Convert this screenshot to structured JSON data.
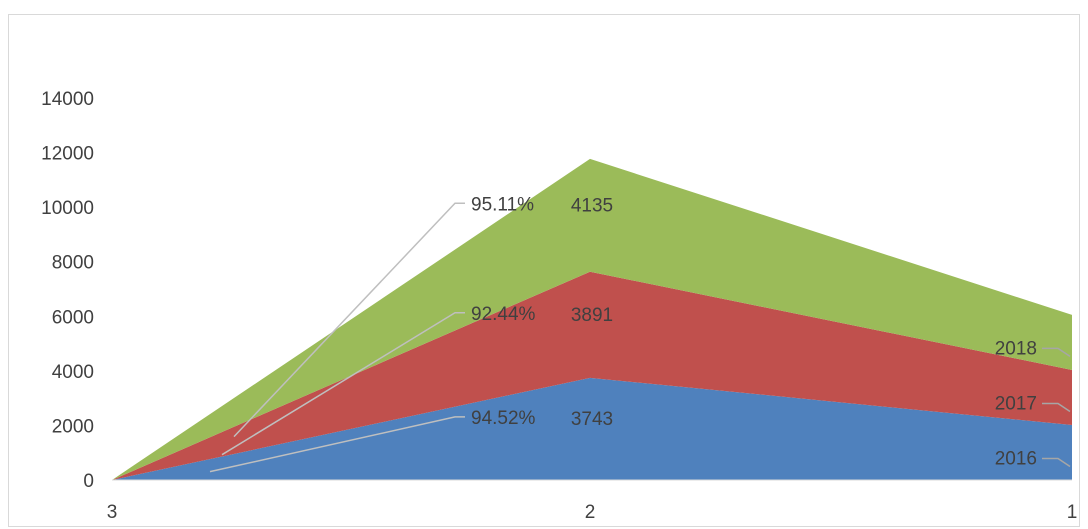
{
  "chart_data": {
    "type": "area",
    "stacked": true,
    "categories": [
      "3",
      "2",
      "1"
    ],
    "series": [
      {
        "name": "2016",
        "values": [
          0,
          3743,
          2016
        ],
        "color": "#4f81bd"
      },
      {
        "name": "2017",
        "values": [
          0,
          3891,
          2017
        ],
        "color": "#c0504d"
      },
      {
        "name": "2018",
        "values": [
          0,
          4135,
          2018
        ],
        "color": "#9bbb59"
      }
    ],
    "ylim": [
      0,
      14000
    ],
    "yticks": [
      "0",
      "2000",
      "4000",
      "6000",
      "8000",
      "10000",
      "12000",
      "14000"
    ],
    "grid": false,
    "legend": "none",
    "annotations": {
      "point_labels": [
        "3743",
        "3891",
        "4135"
      ],
      "series_labels": [
        "2016",
        "2017",
        "2018"
      ],
      "percent_labels": [
        "94.52%",
        "92.44%",
        "95.11%"
      ]
    }
  }
}
